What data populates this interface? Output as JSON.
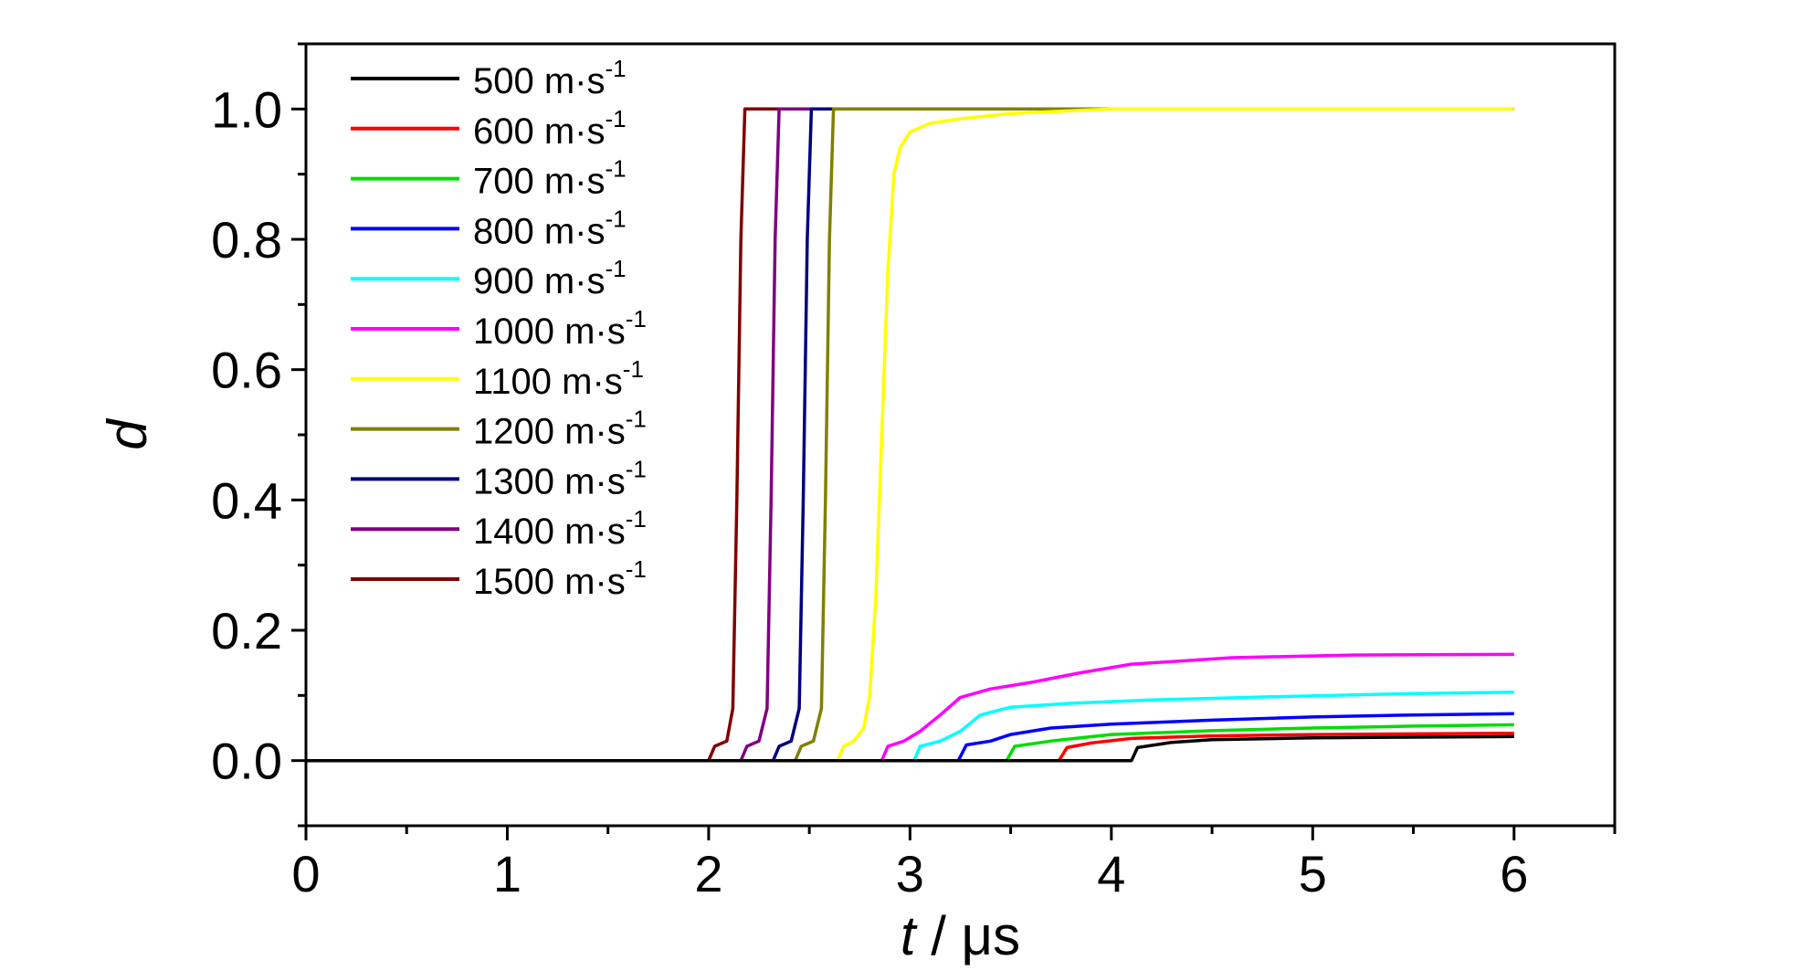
{
  "chart_data": {
    "type": "line",
    "title": "",
    "xlabel_var": "t",
    "xlabel_unit": " / μs",
    "ylabel": "d",
    "xlim": [
      0,
      6.5
    ],
    "ylim": [
      -0.1,
      1.1
    ],
    "xticks": [
      0,
      1,
      2,
      3,
      4,
      5,
      6
    ],
    "xtick_labels": [
      "0",
      "1",
      "2",
      "3",
      "4",
      "5",
      "6"
    ],
    "yticks": [
      0.0,
      0.2,
      0.4,
      0.6,
      0.8,
      1.0
    ],
    "ytick_labels": [
      "0.0",
      "0.2",
      "0.4",
      "0.6",
      "0.8",
      "1.0"
    ],
    "grid": false,
    "legend_placement": "top-left",
    "series": [
      {
        "name": "500 m·s",
        "unit_sup": "-1",
        "color": "#000000",
        "x": [
          0,
          4.1,
          4.13,
          4.3,
          4.5,
          5,
          5.5,
          6
        ],
        "y": [
          0,
          0,
          0.02,
          0.028,
          0.032,
          0.035,
          0.036,
          0.037
        ]
      },
      {
        "name": "600 m·s",
        "unit_sup": "-1",
        "color": "#ff0000",
        "x": [
          0,
          3.74,
          3.78,
          3.9,
          4.1,
          4.5,
          5,
          5.5,
          6
        ],
        "y": [
          0,
          0,
          0.02,
          0.027,
          0.034,
          0.038,
          0.04,
          0.041,
          0.042
        ]
      },
      {
        "name": "700 m·s",
        "unit_sup": "-1",
        "color": "#00dd00",
        "x": [
          0,
          3.48,
          3.52,
          3.7,
          4,
          4.5,
          5,
          5.5,
          6
        ],
        "y": [
          0,
          0,
          0.022,
          0.03,
          0.04,
          0.046,
          0.05,
          0.053,
          0.055
        ]
      },
      {
        "name": "800 m·s",
        "unit_sup": "-1",
        "color": "#0000ff",
        "x": [
          0,
          3.24,
          3.28,
          3.4,
          3.5,
          3.7,
          4,
          4.5,
          5,
          5.5,
          6
        ],
        "y": [
          0,
          0,
          0.024,
          0.03,
          0.04,
          0.05,
          0.056,
          0.062,
          0.067,
          0.07,
          0.072
        ]
      },
      {
        "name": "900 m·s",
        "unit_sup": "-1",
        "color": "#00ffff",
        "x": [
          0,
          3.02,
          3.05,
          3.15,
          3.25,
          3.35,
          3.5,
          3.8,
          4.2,
          4.8,
          5.5,
          6
        ],
        "y": [
          0,
          0,
          0.022,
          0.03,
          0.045,
          0.07,
          0.082,
          0.088,
          0.093,
          0.098,
          0.103,
          0.105
        ]
      },
      {
        "name": "1000 m·s",
        "unit_sup": "-1",
        "color": "#ff00ff",
        "x": [
          0,
          2.86,
          2.89,
          2.97,
          3.05,
          3.15,
          3.25,
          3.4,
          3.6,
          3.85,
          4.1,
          4.6,
          5.2,
          6
        ],
        "y": [
          0,
          0,
          0.022,
          0.03,
          0.045,
          0.07,
          0.097,
          0.11,
          0.12,
          0.135,
          0.148,
          0.158,
          0.162,
          0.163
        ]
      },
      {
        "name": "1100 m·s",
        "unit_sup": "-1",
        "color": "#ffff00",
        "x": [
          0,
          2.64,
          2.67,
          2.72,
          2.77,
          2.8,
          2.83,
          2.86,
          2.89,
          2.92,
          2.95,
          3,
          3.1,
          3.25,
          3.5,
          4,
          6
        ],
        "y": [
          0,
          0,
          0.022,
          0.03,
          0.05,
          0.1,
          0.25,
          0.5,
          0.75,
          0.9,
          0.94,
          0.965,
          0.978,
          0.985,
          0.993,
          1,
          1
        ]
      },
      {
        "name": "1200 m·s",
        "unit_sup": "-1",
        "color": "#808000",
        "x": [
          0,
          2.43,
          2.46,
          2.52,
          2.56,
          2.58,
          2.6,
          2.62,
          6
        ],
        "y": [
          0,
          0,
          0.022,
          0.03,
          0.08,
          0.4,
          0.8,
          1,
          1
        ]
      },
      {
        "name": "1300 m·s",
        "unit_sup": "-1",
        "color": "#000080",
        "x": [
          0,
          2.32,
          2.35,
          2.41,
          2.45,
          2.47,
          2.49,
          2.51,
          6
        ],
        "y": [
          0,
          0,
          0.022,
          0.03,
          0.08,
          0.4,
          0.8,
          1,
          1
        ]
      },
      {
        "name": "1400 m·s",
        "unit_sup": "-1",
        "color": "#800080",
        "x": [
          0,
          2.16,
          2.19,
          2.25,
          2.29,
          2.31,
          2.33,
          2.35,
          6
        ],
        "y": [
          0,
          0,
          0.022,
          0.03,
          0.08,
          0.4,
          0.8,
          1,
          1
        ]
      },
      {
        "name": "1500 m·s",
        "unit_sup": "-1",
        "color": "#800000",
        "x": [
          0,
          2.0,
          2.03,
          2.09,
          2.12,
          2.14,
          2.16,
          2.18,
          6
        ],
        "y": [
          0,
          0,
          0.022,
          0.03,
          0.08,
          0.4,
          0.8,
          1,
          1
        ]
      }
    ]
  }
}
